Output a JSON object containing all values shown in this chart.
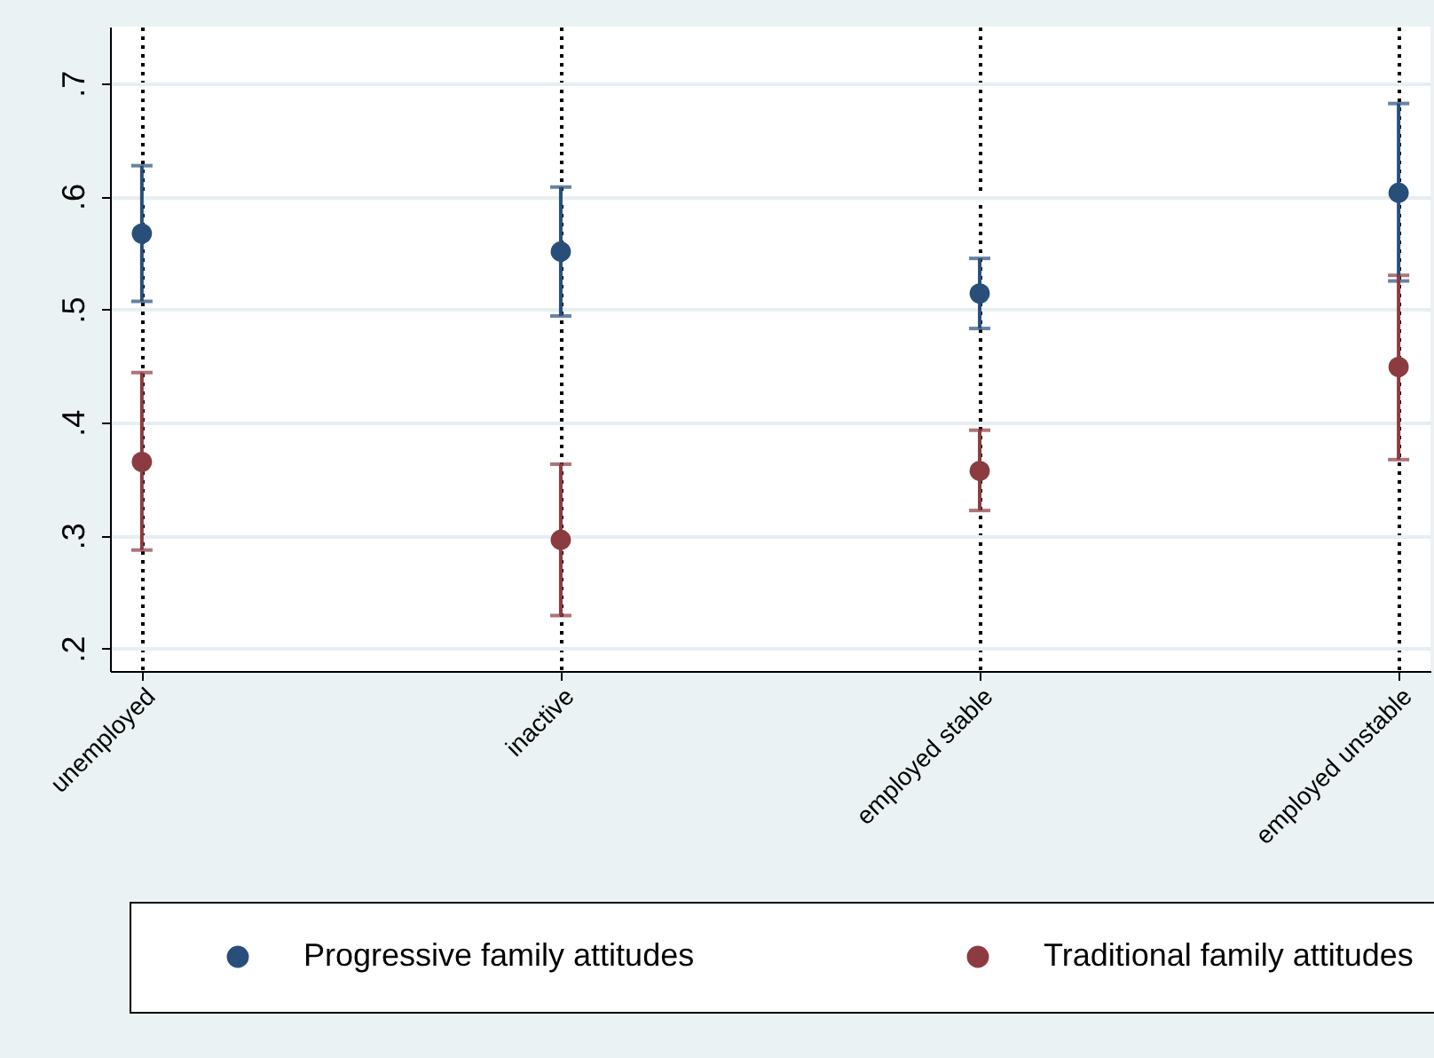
{
  "chart_data": {
    "type": "scatter",
    "categories": [
      "unemployed",
      "inactive",
      "employed stable",
      "employed unstable"
    ],
    "series": [
      {
        "name": "Progressive family attitudes",
        "color": "#284f7a",
        "values": [
          0.567,
          0.551,
          0.514,
          0.603
        ],
        "errors": [
          [
            0.507,
            0.627
          ],
          [
            0.494,
            0.608
          ],
          [
            0.483,
            0.545
          ],
          [
            0.525,
            0.682
          ]
        ]
      },
      {
        "name": "Traditional family attitudes",
        "color": "#8c3b40",
        "values": [
          0.365,
          0.296,
          0.357,
          0.449
        ],
        "errors": [
          [
            0.287,
            0.444
          ],
          [
            0.229,
            0.363
          ],
          [
            0.322,
            0.393
          ],
          [
            0.367,
            0.53
          ]
        ]
      }
    ],
    "ylim": [
      0.18,
      0.75
    ],
    "yticks": [
      {
        "value": 0.2,
        "label": ".2"
      },
      {
        "value": 0.3,
        "label": ".3"
      },
      {
        "value": 0.4,
        "label": ".4"
      },
      {
        "value": 0.5,
        "label": ".5"
      },
      {
        "value": 0.6,
        "label": ".6"
      },
      {
        "value": 0.7,
        "label": ".7"
      }
    ],
    "grid": true,
    "legend": "bottom",
    "marker": "circle"
  }
}
